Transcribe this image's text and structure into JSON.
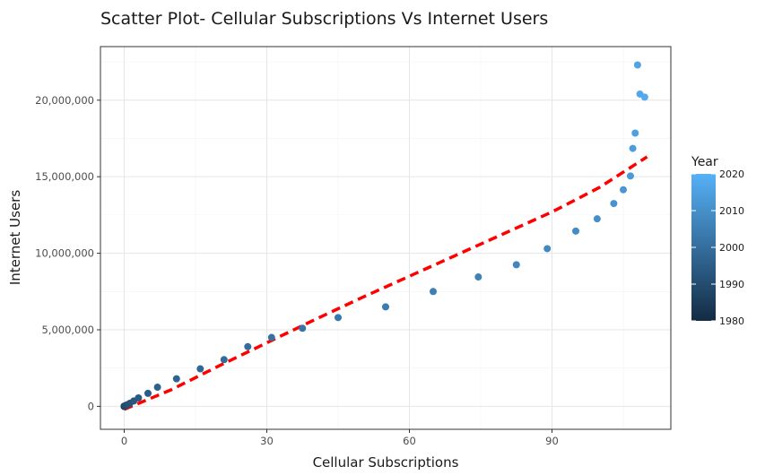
{
  "chart_data": {
    "type": "scatter",
    "title": "Scatter Plot- Cellular Subscriptions Vs Internet Users",
    "xlabel": "Cellular Subscriptions",
    "ylabel": "Internet Users",
    "xlim": [
      -5,
      115
    ],
    "ylim": [
      -1500000,
      23500000
    ],
    "x_ticks": [
      0,
      30,
      60,
      90
    ],
    "x_tick_labels": [
      "0",
      "30",
      "60",
      "90"
    ],
    "y_ticks": [
      0,
      5000000,
      10000000,
      15000000,
      20000000
    ],
    "y_tick_labels": [
      "0",
      "5,000,000",
      "10,000,000",
      "15,000,000",
      "20,000,000"
    ],
    "grid": true,
    "legend": {
      "title": "Year",
      "placement": "right",
      "range": [
        1980,
        2020
      ],
      "ticks": [
        1980,
        1990,
        2000,
        2010,
        2020
      ],
      "tick_labels": [
        "1980",
        "1990",
        "2000",
        "2010",
        "2020"
      ],
      "color_low": "#132b43",
      "color_high": "#56b1f7"
    },
    "trend_line": {
      "style": "dashed",
      "color": "#ff0000",
      "x": [
        0,
        10,
        20,
        30,
        40,
        50,
        60,
        70,
        80,
        90,
        100,
        110
      ],
      "y": [
        -200000,
        1100000,
        2650000,
        4150000,
        5650000,
        7100000,
        8500000,
        9900000,
        11300000,
        12700000,
        14300000,
        16300000
      ]
    },
    "points": [
      {
        "x": 0,
        "y": 0,
        "year": 1980
      },
      {
        "x": 0,
        "y": 0,
        "year": 1981
      },
      {
        "x": 0,
        "y": 0,
        "year": 1982
      },
      {
        "x": 0,
        "y": 0,
        "year": 1983
      },
      {
        "x": 0,
        "y": 0,
        "year": 1984
      },
      {
        "x": 0,
        "y": 0,
        "year": 1985
      },
      {
        "x": 0,
        "y": 0,
        "year": 1986
      },
      {
        "x": 0,
        "y": 10000,
        "year": 1987
      },
      {
        "x": 0.1,
        "y": 20000,
        "year": 1988
      },
      {
        "x": 0.2,
        "y": 40000,
        "year": 1989
      },
      {
        "x": 0.4,
        "y": 70000,
        "year": 1990
      },
      {
        "x": 0.8,
        "y": 120000,
        "year": 1991
      },
      {
        "x": 1.2,
        "y": 200000,
        "year": 1992
      },
      {
        "x": 2,
        "y": 350000,
        "year": 1993
      },
      {
        "x": 3,
        "y": 550000,
        "year": 1994
      },
      {
        "x": 5,
        "y": 850000,
        "year": 1995
      },
      {
        "x": 7,
        "y": 1250000,
        "year": 1996
      },
      {
        "x": 11,
        "y": 1800000,
        "year": 1997
      },
      {
        "x": 16,
        "y": 2450000,
        "year": 1998
      },
      {
        "x": 21,
        "y": 3050000,
        "year": 1999
      },
      {
        "x": 26,
        "y": 3900000,
        "year": 2000
      },
      {
        "x": 31,
        "y": 4500000,
        "year": 2001
      },
      {
        "x": 37.5,
        "y": 5100000,
        "year": 2002
      },
      {
        "x": 45,
        "y": 5800000,
        "year": 2003
      },
      {
        "x": 55,
        "y": 6500000,
        "year": 2004
      },
      {
        "x": 65,
        "y": 7500000,
        "year": 2005
      },
      {
        "x": 74.5,
        "y": 8450000,
        "year": 2006
      },
      {
        "x": 82.5,
        "y": 9250000,
        "year": 2007
      },
      {
        "x": 89,
        "y": 10300000,
        "year": 2008
      },
      {
        "x": 95,
        "y": 11450000,
        "year": 2009
      },
      {
        "x": 99.5,
        "y": 12250000,
        "year": 2010
      },
      {
        "x": 103,
        "y": 13250000,
        "year": 2011
      },
      {
        "x": 105,
        "y": 14150000,
        "year": 2012
      },
      {
        "x": 106.5,
        "y": 15050000,
        "year": 2013
      },
      {
        "x": 107,
        "y": 16850000,
        "year": 2014
      },
      {
        "x": 107.5,
        "y": 17850000,
        "year": 2015
      },
      {
        "x": 108,
        "y": 22300000,
        "year": 2016
      },
      {
        "x": 108.5,
        "y": 20400000,
        "year": 2017
      },
      {
        "x": 109.5,
        "y": 20200000,
        "year": 2018
      }
    ]
  }
}
